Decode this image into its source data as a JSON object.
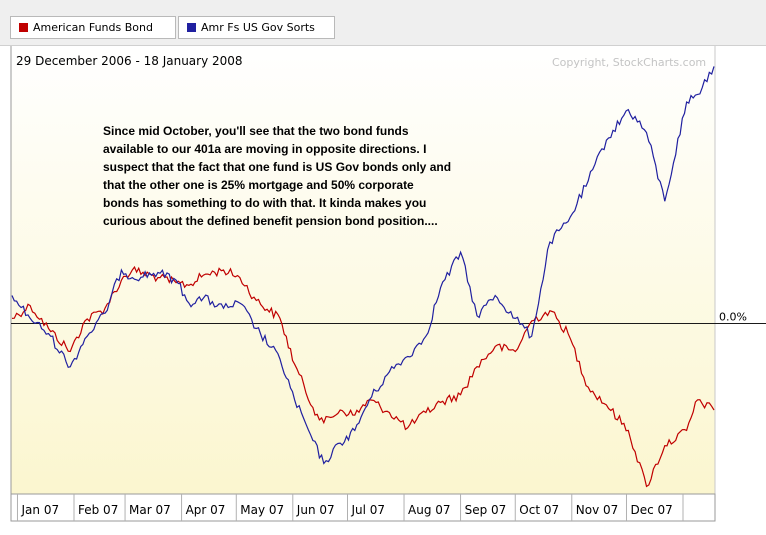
{
  "legend": [
    {
      "label": "American Funds Bond",
      "color": "#c00000"
    },
    {
      "label": "Amr Fs US Gov Sorts",
      "color": "#2020a0"
    }
  ],
  "date_range": "29 December 2006 - 18 January 2008",
  "copyright": "Copyright, StockCharts.com",
  "annotation": [
    "Since mid October,  you'll see that the two bond funds",
    "available to our 401a are moving in opposite directions.  I",
    "suspect that the fact that one fund is US Gov bonds only and",
    "that the other one is 25% mortgage and 50% corporate",
    "bonds has something to do with that.  It kinda makes you",
    "curious about the defined benefit pension bond position...."
  ],
  "chart_data": {
    "type": "line",
    "xlabel": "",
    "ylabel": "",
    "y_reference_label": "0.0%",
    "x_ticks": [
      "Jan 07",
      "Feb 07",
      "Mar 07",
      "Apr 07",
      "May 07",
      "Jun 07",
      "Jul 07",
      "Aug 07",
      "Sep 07",
      "Oct 07",
      "Nov 07",
      "Dec 07"
    ],
    "x_range": [
      "2006-12-29",
      "2008-01-18"
    ],
    "series": [
      {
        "name": "American Funds Bond",
        "color": "#c00000",
        "x": [
          "2006-12-29",
          "2007-01-08",
          "2007-01-18",
          "2007-01-30",
          "2007-02-07",
          "2007-02-18",
          "2007-02-27",
          "2007-03-05",
          "2007-03-19",
          "2007-03-29",
          "2007-04-05",
          "2007-04-13",
          "2007-04-24",
          "2007-05-03",
          "2007-05-12",
          "2007-05-25",
          "2007-06-02",
          "2007-06-12",
          "2007-06-18",
          "2007-06-27",
          "2007-07-05",
          "2007-07-13",
          "2007-07-24",
          "2007-08-03",
          "2007-08-13",
          "2007-08-21",
          "2007-09-01",
          "2007-09-10",
          "2007-09-20",
          "2007-10-01",
          "2007-10-10",
          "2007-10-20",
          "2007-10-30",
          "2007-11-10",
          "2007-11-20",
          "2007-12-02",
          "2007-12-12",
          "2007-12-22",
          "2008-01-03",
          "2008-01-09",
          "2008-01-18"
        ],
        "y": [
          0.1,
          0.35,
          -0.1,
          -0.55,
          0.05,
          0.3,
          0.85,
          1.05,
          0.9,
          0.8,
          0.75,
          0.95,
          1.05,
          0.9,
          0.45,
          0.1,
          -0.8,
          -1.65,
          -1.95,
          -1.7,
          -1.8,
          -1.5,
          -1.75,
          -2.05,
          -1.75,
          -1.55,
          -1.4,
          -0.85,
          -0.45,
          -0.55,
          0.05,
          0.25,
          -0.2,
          -1.25,
          -1.6,
          -2.1,
          -3.2,
          -2.4,
          -2.1,
          -1.5,
          -1.7
        ]
      },
      {
        "name": "Amr Fs US Gov Sorts",
        "color": "#2020a0",
        "x": [
          "2006-12-29",
          "2007-01-08",
          "2007-01-18",
          "2007-01-30",
          "2007-02-07",
          "2007-02-18",
          "2007-02-27",
          "2007-03-05",
          "2007-03-19",
          "2007-03-29",
          "2007-04-05",
          "2007-04-13",
          "2007-04-24",
          "2007-05-03",
          "2007-05-12",
          "2007-05-25",
          "2007-06-02",
          "2007-06-12",
          "2007-06-18",
          "2007-06-27",
          "2007-07-05",
          "2007-07-13",
          "2007-07-24",
          "2007-08-03",
          "2007-08-13",
          "2007-08-21",
          "2007-09-01",
          "2007-09-10",
          "2007-09-20",
          "2007-10-01",
          "2007-10-10",
          "2007-10-20",
          "2007-10-30",
          "2007-11-10",
          "2007-11-20",
          "2007-12-02",
          "2007-12-12",
          "2007-12-22",
          "2008-01-03",
          "2008-01-09",
          "2008-01-18"
        ],
        "y": [
          0.55,
          0.1,
          -0.2,
          -0.85,
          -0.3,
          0.2,
          1.05,
          0.9,
          1.0,
          0.85,
          0.4,
          0.5,
          0.3,
          0.4,
          -0.1,
          -0.7,
          -1.5,
          -2.3,
          -2.75,
          -2.35,
          -2.1,
          -1.5,
          -0.95,
          -0.65,
          -0.25,
          0.7,
          1.4,
          0.15,
          0.55,
          0.1,
          -0.25,
          1.6,
          2.0,
          2.8,
          3.6,
          4.2,
          3.75,
          2.4,
          4.35,
          4.5,
          5.05
        ]
      }
    ],
    "ylim": [
      -3.35,
      5.45
    ],
    "grid": false,
    "legend_position": "top-left"
  }
}
